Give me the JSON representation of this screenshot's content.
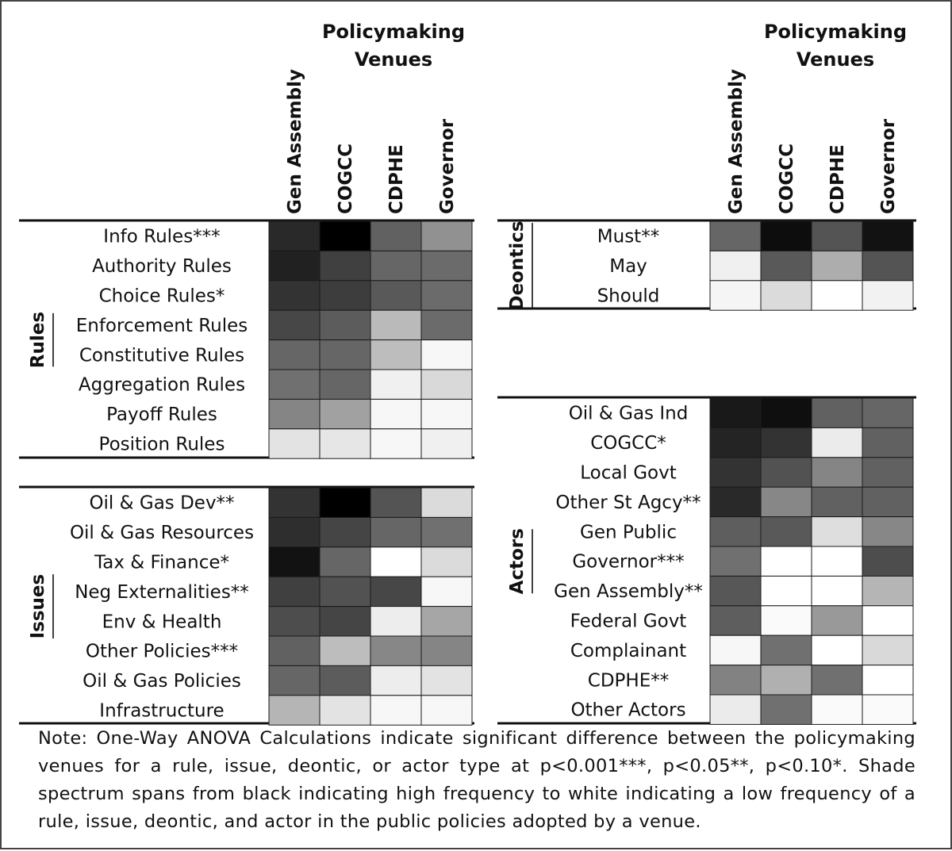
{
  "chart_data": {
    "type": "heatmap",
    "scale": "Shade = relative frequency (0 = white / low, 1 = black / high)",
    "header_title_line1": "Policymaking",
    "header_title_line2": "Venues",
    "venues": [
      "Gen Assembly",
      "COGCC",
      "CDPHE",
      "Governor"
    ],
    "groups": [
      {
        "name": "Rules",
        "rows": [
          {
            "label": "Info Rules***",
            "values": [
              0.84,
              1.0,
              0.62,
              0.43
            ]
          },
          {
            "label": "Authority Rules",
            "values": [
              0.87,
              0.75,
              0.6,
              0.58
            ]
          },
          {
            "label": "Choice Rules*",
            "values": [
              0.8,
              0.76,
              0.65,
              0.58
            ]
          },
          {
            "label": "Enforcement Rules",
            "values": [
              0.72,
              0.64,
              0.27,
              0.58
            ]
          },
          {
            "label": "Constitutive Rules",
            "values": [
              0.6,
              0.6,
              0.26,
              0.03
            ]
          },
          {
            "label": "Aggregation Rules",
            "values": [
              0.56,
              0.6,
              0.06,
              0.15
            ]
          },
          {
            "label": "Payoff Rules",
            "values": [
              0.48,
              0.37,
              0.03,
              0.03
            ]
          },
          {
            "label": "Position Rules",
            "values": [
              0.11,
              0.1,
              0.03,
              0.06
            ]
          }
        ]
      },
      {
        "name": "Issues",
        "rows": [
          {
            "label": "Oil & Gas Dev**",
            "values": [
              0.8,
              1.0,
              0.67,
              0.14
            ]
          },
          {
            "label": "Oil & Gas Resources",
            "values": [
              0.82,
              0.73,
              0.6,
              0.56
            ]
          },
          {
            "label": "Tax & Finance*",
            "values": [
              0.93,
              0.6,
              0.0,
              0.14
            ]
          },
          {
            "label": "Neg Externalities**",
            "values": [
              0.75,
              0.68,
              0.72,
              0.03
            ]
          },
          {
            "label": "Env & Health",
            "values": [
              0.7,
              0.73,
              0.07,
              0.35
            ]
          },
          {
            "label": "Other Policies***",
            "values": [
              0.62,
              0.26,
              0.47,
              0.48
            ]
          },
          {
            "label": "Oil & Gas Policies",
            "values": [
              0.6,
              0.64,
              0.07,
              0.11
            ]
          },
          {
            "label": "Infrastructure",
            "values": [
              0.29,
              0.11,
              0.03,
              0.03
            ]
          }
        ]
      },
      {
        "name": "Deontics",
        "rows": [
          {
            "label": "Must**",
            "values": [
              0.6,
              0.95,
              0.67,
              0.93
            ]
          },
          {
            "label": "May",
            "values": [
              0.06,
              0.65,
              0.32,
              0.67
            ]
          },
          {
            "label": "Should",
            "values": [
              0.04,
              0.14,
              0.0,
              0.05
            ]
          }
        ]
      },
      {
        "name": "Actors",
        "rows": [
          {
            "label": "Oil & Gas Ind",
            "values": [
              0.9,
              0.94,
              0.62,
              0.6
            ]
          },
          {
            "label": "COGCC*",
            "values": [
              0.86,
              0.8,
              0.08,
              0.62
            ]
          },
          {
            "label": "Local Govt",
            "values": [
              0.8,
              0.68,
              0.48,
              0.62
            ]
          },
          {
            "label": "Other St Agcy**",
            "values": [
              0.84,
              0.47,
              0.62,
              0.62
            ]
          },
          {
            "label": "Gen Public",
            "values": [
              0.63,
              0.65,
              0.13,
              0.47
            ]
          },
          {
            "label": "Governor***",
            "values": [
              0.56,
              0.0,
              0.0,
              0.7
            ]
          },
          {
            "label": "Gen Assembly**",
            "values": [
              0.66,
              0.0,
              0.0,
              0.29
            ]
          },
          {
            "label": "Federal Govt",
            "values": [
              0.63,
              0.02,
              0.4,
              0.0
            ]
          },
          {
            "label": "Complainant",
            "values": [
              0.03,
              0.56,
              0.0,
              0.15
            ]
          },
          {
            "label": "CDPHE**",
            "values": [
              0.49,
              0.31,
              0.56,
              0.0
            ]
          },
          {
            "label": "Other Actors",
            "values": [
              0.08,
              0.56,
              0.02,
              0.02
            ]
          }
        ]
      }
    ]
  },
  "note": "Note: One-Way ANOVA Calculations indicate significant difference between the policymaking venues for a rule, issue, deontic, or actor type at p<0.001***, p<0.05**, p<0.10*. Shade spectrum spans from black indicating high frequency to white indicating a low frequency of a rule, issue, deontic, and actor in the public policies adopted by a venue."
}
